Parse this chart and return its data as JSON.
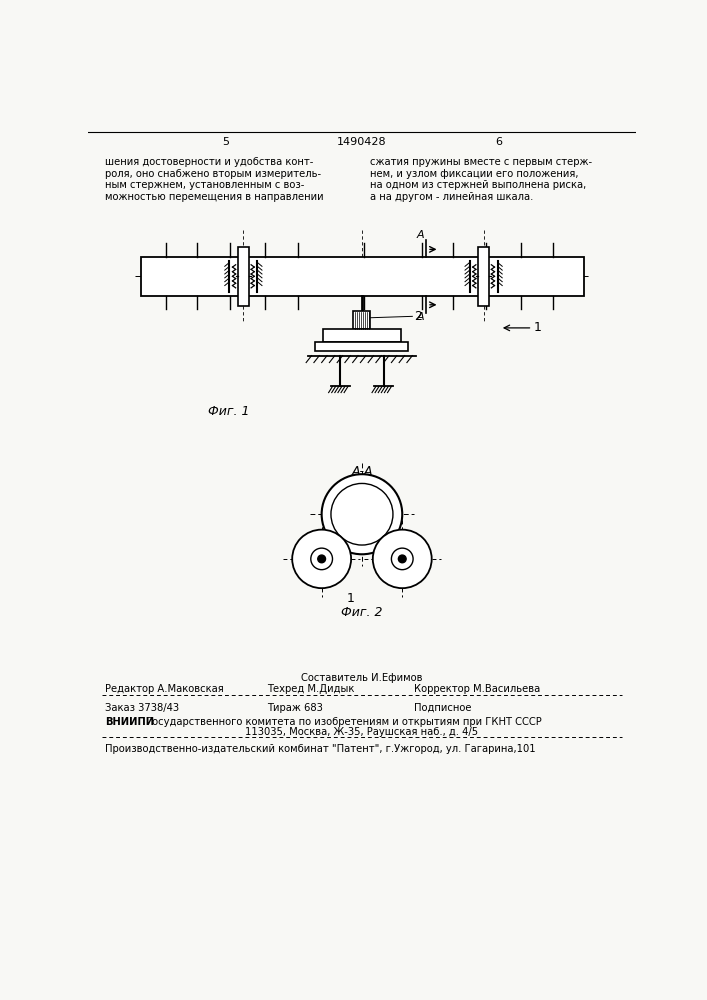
{
  "bg_color": "#f8f8f5",
  "page_width": 7.07,
  "page_height": 10.0,
  "header": {
    "page_left": "5",
    "patent_num": "1490428",
    "page_right": "6"
  },
  "text_left": [
    "шения достоверности и удобства конт-",
    "роля, оно снабжено вторым измеритель-",
    "ным стержнем, установленным с воз-",
    "можностью перемещения в направлении"
  ],
  "text_right": [
    "сжатия пружины вместе с первым стерж-",
    "нем, и узлом фиксации его положения,",
    "на одном из стержней выполнена риска,",
    "а на другом - линейная шкала."
  ],
  "fig1_label": "Фиг. 1",
  "fig2_label": "Фиг. 2",
  "section_label": "А-А",
  "label1": "1",
  "label2": "2",
  "footer": {
    "sostavitel": "Составитель И.Ефимов",
    "redaktor": "Редактор А.Маковская",
    "tehred": "Техред М.Дидык",
    "korrektor": "Корректор М.Васильева",
    "zakaz": "Заказ 3738/43",
    "tirazh": "Тираж 683",
    "podpisnoe": "Подписное",
    "vniip1": "ВНИИПИ Государственного комитета по изобретениям и открытиям при ГКНТ СССР",
    "vniip2": "113035, Москва, Ж-35, Раушская наб., д. 4/5",
    "proizv": "Производственно-издательский комбинат \"Патент\", г.Ужгород, ул. Гагарина,101"
  }
}
